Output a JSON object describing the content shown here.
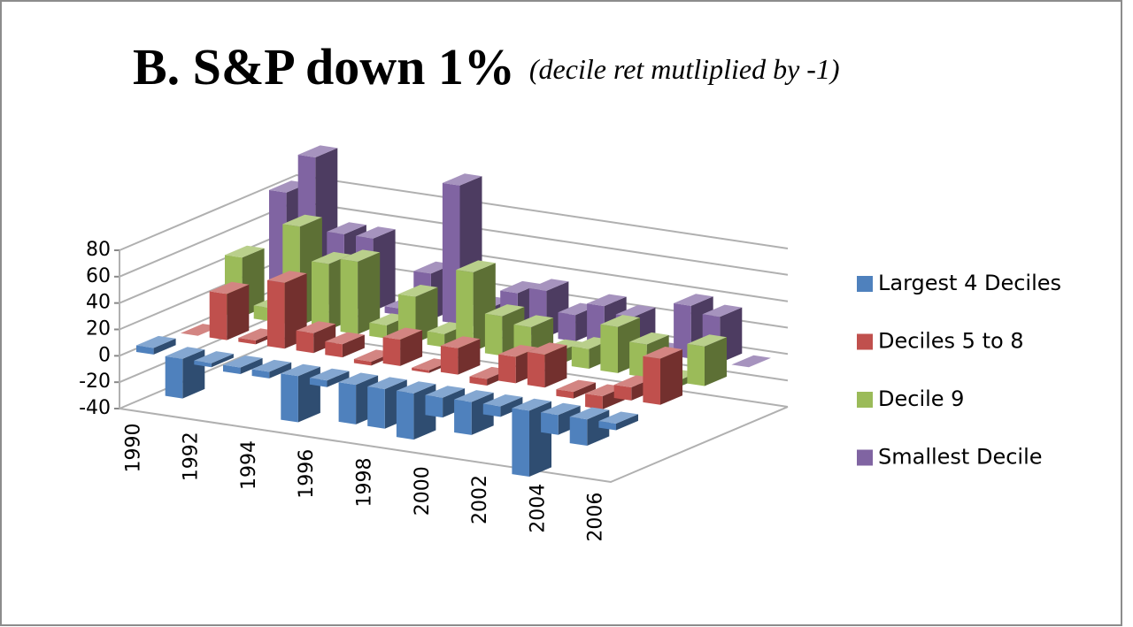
{
  "chart_data": {
    "type": "bar3d",
    "title": "B. S&P down 1%",
    "subtitle": "(decile ret mutliplied by -1)",
    "categories": [
      "1990",
      null,
      "1992",
      null,
      "1994",
      null,
      "1996",
      null,
      "1998",
      null,
      "2000",
      null,
      "2002",
      null,
      "2004",
      null,
      "2006"
    ],
    "series": [
      {
        "name": "Largest 4 Deciles",
        "color": "#4f81bd",
        "values": [
          5,
          -30,
          -3,
          -5,
          -5,
          -35,
          -5,
          -30,
          -30,
          -35,
          -15,
          -25,
          -8,
          -50,
          -15,
          -20,
          -5
        ]
      },
      {
        "name": "Deciles 5 to 8",
        "color": "#c0504d",
        "values": [
          0,
          35,
          3,
          50,
          15,
          10,
          -3,
          20,
          -2,
          20,
          -5,
          20,
          25,
          -5,
          -10,
          10,
          35
        ]
      },
      {
        "name": "Decile 9",
        "color": "#9bbb59",
        "values": [
          45,
          10,
          75,
          50,
          55,
          10,
          35,
          10,
          60,
          30,
          25,
          10,
          15,
          35,
          25,
          -5,
          30
        ]
      },
      {
        "name": "Smallest Decile",
        "color": "#8064a2",
        "values": [
          80,
          110,
          55,
          55,
          5,
          35,
          105,
          15,
          30,
          35,
          20,
          30,
          25,
          -5,
          40,
          35,
          0
        ]
      }
    ],
    "ylim": [
      -40,
      80
    ],
    "yticks": [
      -40,
      -20,
      0,
      20,
      40,
      60,
      80
    ],
    "grid": true,
    "legend": "right"
  }
}
